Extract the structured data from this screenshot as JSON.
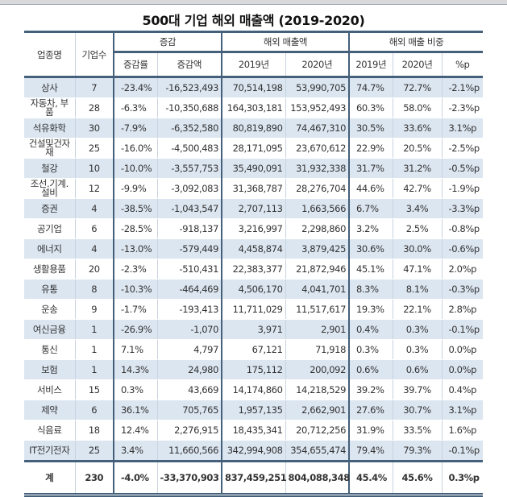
{
  "title": "500대 기업 해외 매출액 (2019-2020)",
  "header": {
    "industry": "업종명",
    "count": "기업수",
    "change_group": "증감",
    "overseas_sales_group": "해외 매출액",
    "overseas_share_group": "해외 매출 비중",
    "change_rate": "증감률",
    "change_amount": "증감액",
    "sales_2019": "2019년",
    "sales_2020": "2020년",
    "share_2019": "2019년",
    "share_2020": "2020년",
    "share_diff": "%p"
  },
  "rows": [
    [
      "상사",
      "7",
      "-23.4%",
      "-16,523,493",
      "70,514,198",
      "53,990,705",
      "74.7%",
      "72.7%",
      "-2.1%p"
    ],
    [
      "자동차, 부품",
      "28",
      "-6.3%",
      "-10,350,688",
      "164,303,181",
      "153,952,493",
      "60.3%",
      "58.0%",
      "-2.3%p"
    ],
    [
      "석유화학",
      "30",
      "-7.9%",
      "-6,352,580",
      "80,819,890",
      "74,467,310",
      "30.5%",
      "33.6%",
      "3.1%p"
    ],
    [
      "건설및건자재",
      "25",
      "-16.0%",
      "-4,500,483",
      "28,171,095",
      "23,670,612",
      "22.9%",
      "20.5%",
      "-2.5%p"
    ],
    [
      "철강",
      "10",
      "-10.0%",
      "-3,557,753",
      "35,490,091",
      "31,932,338",
      "31.7%",
      "31.2%",
      "-0.5%p"
    ],
    [
      "조선.기계.설비",
      "12",
      "-9.9%",
      "-3,092,083",
      "31,368,787",
      "28,276,704",
      "44.6%",
      "42.7%",
      "-1.9%p"
    ],
    [
      "증권",
      "4",
      "-38.5%",
      "-1,043,547",
      "2,707,113",
      "1,663,566",
      "6.7%",
      "3.4%",
      "-3.3%p"
    ],
    [
      "공기업",
      "6",
      "-28.5%",
      "-918,137",
      "3,216,997",
      "2,298,860",
      "3.2%",
      "2.5%",
      "-0.8%p"
    ],
    [
      "에너지",
      "4",
      "-13.0%",
      "-579,449",
      "4,458,874",
      "3,879,425",
      "30.6%",
      "30.0%",
      "-0.6%p"
    ],
    [
      "생활용품",
      "20",
      "-2.3%",
      "-510,431",
      "22,383,377",
      "21,872,946",
      "45.1%",
      "47.1%",
      "2.0%p"
    ],
    [
      "유통",
      "8",
      "-10.3%",
      "-464,469",
      "4,506,170",
      "4,041,701",
      "8.3%",
      "8.1%",
      "-0.3%p"
    ],
    [
      "운송",
      "9",
      "-1.7%",
      "-193,413",
      "11,711,029",
      "11,517,617",
      "19.3%",
      "22.1%",
      "2.8%p"
    ],
    [
      "여신금융",
      "1",
      "-26.9%",
      "-1,070",
      "3,971",
      "2,901",
      "0.4%",
      "0.3%",
      "-0.1%p"
    ],
    [
      "통신",
      "1",
      "7.1%",
      "4,797",
      "67,121",
      "71,918",
      "0.3%",
      "0.3%",
      "0.0%p"
    ],
    [
      "보험",
      "1",
      "14.3%",
      "24,980",
      "175,112",
      "200,092",
      "0.6%",
      "0.6%",
      "0.0%p"
    ],
    [
      "서비스",
      "15",
      "0.3%",
      "43,669",
      "14,174,860",
      "14,218,529",
      "39.2%",
      "39.7%",
      "0.4%p"
    ],
    [
      "제약",
      "6",
      "36.1%",
      "705,765",
      "1,957,135",
      "2,662,901",
      "27.6%",
      "30.7%",
      "3.1%p"
    ],
    [
      "식음료",
      "18",
      "12.4%",
      "2,276,915",
      "18,435,341",
      "20,712,256",
      "31.9%",
      "33.5%",
      "1.6%p"
    ],
    [
      "IT전기전자",
      "25",
      "3.4%",
      "11,660,566",
      "342,994,908",
      "354,655,474",
      "79.4%",
      "79.3%",
      "-0.1%p"
    ]
  ],
  "total": [
    "계",
    "230",
    "-4.0%",
    "-33,370,903",
    "837,459,251",
    "804,088,348",
    "45.4%",
    "45.6%",
    "0.3%p"
  ],
  "colors": {
    "border": "#44607a",
    "shade": "#dce6f1"
  }
}
